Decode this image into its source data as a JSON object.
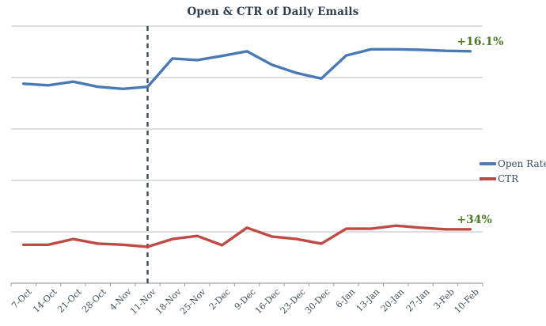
{
  "title": "Open & CTR of Daily Emails",
  "chart_data": {
    "type": "line",
    "title": "Open & CTR of Daily Emails",
    "categories": [
      "7-Oct",
      "14-Oct",
      "21-Oct",
      "28-Oct",
      "4-Nov",
      "11-Nov",
      "18-Nov",
      "25-Nov",
      "2-Dec",
      "9-Dec",
      "16-Dec",
      "23-Dec",
      "30-Dec",
      "6-Jan",
      "13-Jan",
      "20-Jan",
      "27-Jan",
      "3-Feb",
      "10-Feb"
    ],
    "series": [
      {
        "name": "Open Rate",
        "color": "#4a7ab5",
        "values": [
          38.8,
          38.5,
          39.2,
          38.2,
          37.8,
          38.2,
          43.7,
          43.4,
          44.2,
          45.1,
          42.5,
          40.9,
          39.8,
          44.3,
          45.5,
          45.5,
          45.4,
          45.2,
          45.1
        ]
      },
      {
        "name": "CTR",
        "color": "#bf4b44",
        "values": [
          7.5,
          7.5,
          8.6,
          7.7,
          7.5,
          7.1,
          8.6,
          9.2,
          7.4,
          10.8,
          9.1,
          8.6,
          7.7,
          10.6,
          10.6,
          11.2,
          10.8,
          10.5,
          10.5
        ]
      }
    ],
    "ylim": [
      0,
      50
    ],
    "gridline_step": 10,
    "grid": "horizontal-only",
    "y_axis_labels_visible": false,
    "legend_position": "right",
    "marker_line": {
      "category": "11-Nov",
      "style": "dashed",
      "color": "#3a4a5a"
    },
    "annotations": [
      {
        "text": "+16.1%",
        "series": "Open Rate",
        "color": "#4e7b2a"
      },
      {
        "text": "+34%",
        "series": "CTR",
        "color": "#4e7b2a"
      }
    ],
    "gridline_color": "#b9bec3",
    "axis_color": "#a9aeb2",
    "tick_color": "#9ba1a8"
  }
}
